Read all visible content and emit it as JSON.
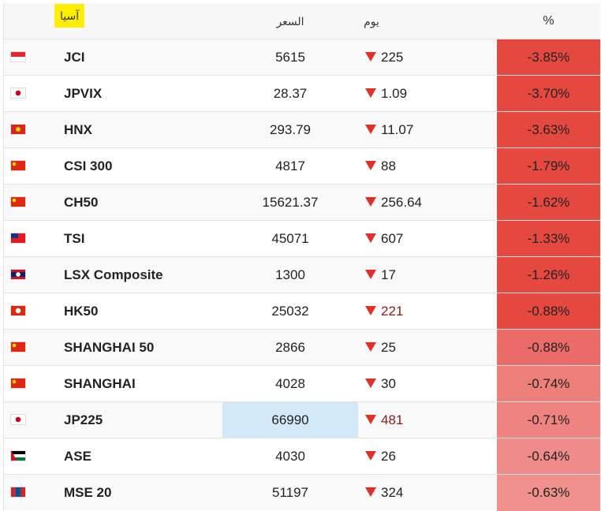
{
  "header": {
    "title": "آسيا",
    "price": "السعر",
    "day": "يوم",
    "percent": "%"
  },
  "table": {
    "rows": [
      {
        "name": "JCI",
        "price": "5615",
        "change": "225",
        "percent": "-3.85%",
        "color": "#e5483f"
      },
      {
        "name": "JPVIX",
        "price": "28.37",
        "change": "1.09",
        "percent": "-3.70%",
        "color": "#e5483f"
      },
      {
        "name": "HNX",
        "price": "293.79",
        "change": "11.07",
        "percent": "-3.63%",
        "color": "#e5483f"
      },
      {
        "name": "CSI 300",
        "price": "4817",
        "change": "88",
        "percent": "-1.79%",
        "color": "#e5483f"
      },
      {
        "name": "CH50",
        "price": "15621.37",
        "change": "256.64",
        "percent": "-1.62%",
        "color": "#e5483f"
      },
      {
        "name": "TSI",
        "price": "45071",
        "change": "607",
        "percent": "-1.33%",
        "color": "#e5483f"
      },
      {
        "name": "LSX Composite",
        "price": "1300",
        "change": "17",
        "percent": "-1.26%",
        "color": "#e5483f"
      },
      {
        "name": "HK50",
        "price": "25032",
        "change": "221",
        "percent": "-0.88%",
        "color": "#e5483f"
      },
      {
        "name": "SHANGHAI 50",
        "price": "2866",
        "change": "25",
        "percent": "-0.88%",
        "color": "#ea6b67"
      },
      {
        "name": "SHANGHAI",
        "price": "4028",
        "change": "30",
        "percent": "-0.74%",
        "color": "#ed7f7b"
      },
      {
        "name": "JP225",
        "price": "66990",
        "change": "481",
        "percent": "-0.71%",
        "color": "#ee8380"
      },
      {
        "name": "ASE",
        "price": "4030",
        "change": "26",
        "percent": "-0.64%",
        "color": "#ef8b88"
      },
      {
        "name": "MSE 20",
        "price": "51197",
        "change": "324",
        "percent": "-0.63%",
        "color": "#f0918e"
      }
    ]
  }
}
